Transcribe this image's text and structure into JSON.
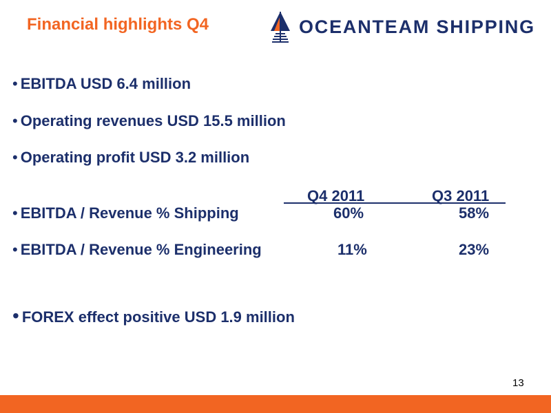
{
  "slide": {
    "title": "Financial highlights Q4",
    "logo": {
      "text": "OCEANTEAM SHIPPING",
      "icon": "ship-sail-icon",
      "brand_color": "#1c2f6b"
    },
    "accent_color": "#f26522",
    "bullet_glyph": "•",
    "bullets": [
      "EBITDA USD 6.4 million",
      "Operating revenues USD 15.5 million",
      "Operating profit USD 3.2 million"
    ],
    "table": {
      "columns": [
        "Q4 2011",
        "Q3 2011"
      ],
      "rows": [
        {
          "label": "EBITDA / Revenue % Shipping",
          "q4": "60%",
          "q3": "58%"
        },
        {
          "label": "EBITDA / Revenue % Engineering",
          "q4": "11%",
          "q3": "23%"
        }
      ]
    },
    "final_bullet": "FOREX effect positive USD 1.9 million",
    "page_number": "13"
  }
}
